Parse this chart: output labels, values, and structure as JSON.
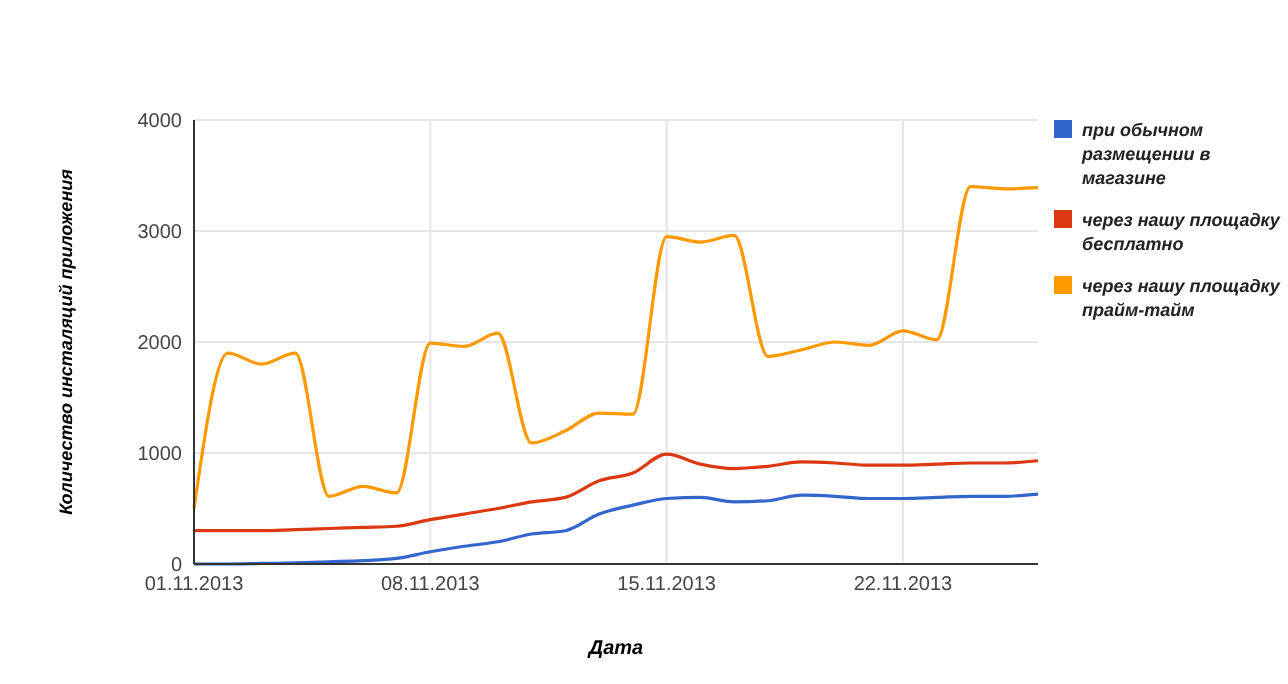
{
  "chart_data": {
    "type": "line",
    "xlabel": "Дата",
    "ylabel": "Количество инсталяций приложения",
    "x": [
      "2013-11-01",
      "2013-11-02",
      "2013-11-03",
      "2013-11-04",
      "2013-11-05",
      "2013-11-06",
      "2013-11-07",
      "2013-11-08",
      "2013-11-09",
      "2013-11-10",
      "2013-11-11",
      "2013-11-12",
      "2013-11-13",
      "2013-11-14",
      "2013-11-15",
      "2013-11-16",
      "2013-11-17",
      "2013-11-18",
      "2013-11-19",
      "2013-11-20",
      "2013-11-21",
      "2013-11-22",
      "2013-11-23",
      "2013-11-24",
      "2013-11-25",
      "2013-11-26"
    ],
    "series": [
      {
        "name": "при обычном размещении в магазине",
        "color": "#3366cc",
        "values": [
          0,
          0,
          5,
          10,
          20,
          30,
          50,
          110,
          160,
          200,
          270,
          300,
          450,
          530,
          590,
          600,
          560,
          570,
          620,
          610,
          590,
          590,
          600,
          610,
          610,
          630
        ]
      },
      {
        "name": "через нашу площадку бесплатно",
        "color": "#dc3912",
        "values": [
          300,
          300,
          300,
          310,
          320,
          330,
          340,
          400,
          450,
          500,
          560,
          600,
          750,
          820,
          990,
          900,
          860,
          880,
          920,
          910,
          890,
          890,
          900,
          910,
          910,
          930
        ]
      },
      {
        "name": "через нашу площадку прайм-тайм",
        "color": "#ff9900",
        "values": [
          500,
          1900,
          1800,
          1900,
          610,
          700,
          640,
          1990,
          1960,
          2080,
          1090,
          1200,
          1360,
          1350,
          2950,
          2900,
          2960,
          1870,
          1930,
          2000,
          1970,
          2100,
          2020,
          3400,
          3380,
          3390
        ]
      }
    ],
    "xlim": [
      "2013-11-01",
      "2013-11-26"
    ],
    "xticks": [
      {
        "value": "2013-11-01",
        "label": "01.11.2013"
      },
      {
        "value": "2013-11-08",
        "label": "08.11.2013"
      },
      {
        "value": "2013-11-15",
        "label": "15.11.2013"
      },
      {
        "value": "2013-11-22",
        "label": "22.11.2013"
      }
    ],
    "ylim": [
      0,
      4000
    ],
    "yticks": [
      0,
      1000,
      2000,
      3000,
      4000
    ],
    "grid": true,
    "legend": "right",
    "marker": "none",
    "line_style": "solid"
  }
}
